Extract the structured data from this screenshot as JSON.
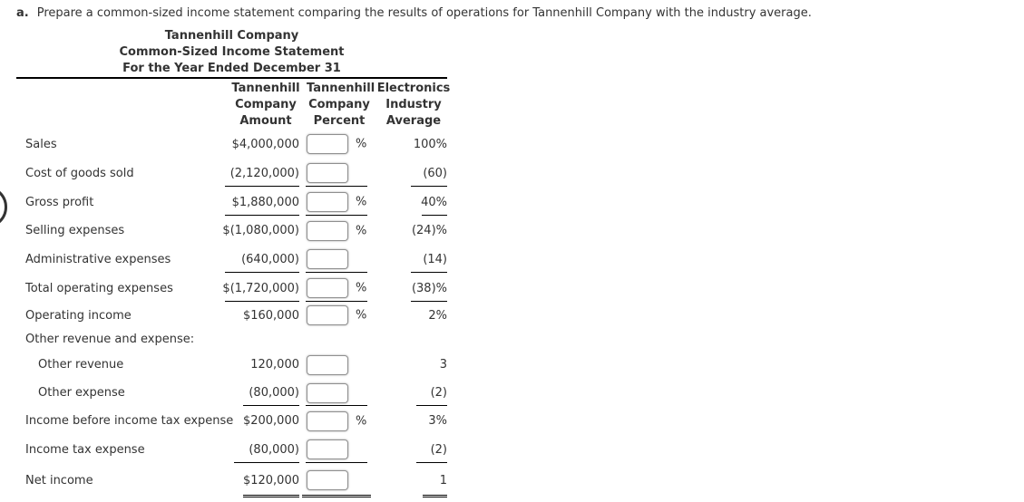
{
  "instruction": {
    "prefix": "a.",
    "text": "Prepare a common-sized income statement comparing the results of operations for Tannenhill Company with the industry average."
  },
  "statement": {
    "title_lines": [
      "Tannenhill Company",
      "Common-Sized Income Statement",
      "For the Year Ended December 31"
    ],
    "columns": [
      {
        "label_lines": [
          "Tannenhill",
          "Company",
          "Amount"
        ]
      },
      {
        "label_lines": [
          "Tannenhill",
          "Company",
          "Percent"
        ]
      },
      {
        "label_lines": [
          "Electronics",
          "Industry",
          "Average"
        ]
      }
    ],
    "rows": [
      {
        "label": "Sales",
        "indent": 0,
        "amount": "$4,000,000",
        "has_input": true,
        "input_value": "",
        "percent_suffix": "%",
        "industry": "100%",
        "underline": "none"
      },
      {
        "label": "Cost of goods sold",
        "indent": 0,
        "amount": "(2,120,000)",
        "has_input": true,
        "input_value": "",
        "percent_suffix": "",
        "industry": "(60)",
        "underline": "single"
      },
      {
        "label": "Gross profit",
        "indent": 0,
        "amount": "$1,880,000",
        "has_input": true,
        "input_value": "",
        "percent_suffix": "%",
        "industry": "40%",
        "underline": "single"
      },
      {
        "label": "Selling expenses",
        "indent": 0,
        "amount": "$(1,080,000)",
        "has_input": true,
        "input_value": "",
        "percent_suffix": "%",
        "industry": "(24)%",
        "underline": "none"
      },
      {
        "label": "Administrative expenses",
        "indent": 0,
        "amount": "(640,000)",
        "has_input": true,
        "input_value": "",
        "percent_suffix": "",
        "industry": "(14)",
        "underline": "single"
      },
      {
        "label": "Total operating expenses",
        "indent": 0,
        "amount": "$(1,720,000)",
        "has_input": true,
        "input_value": "",
        "percent_suffix": "%",
        "industry": "(38)%",
        "underline": "single"
      },
      {
        "label": "Operating income",
        "indent": 0,
        "amount": "$160,000",
        "has_input": true,
        "input_value": "",
        "percent_suffix": "%",
        "industry": "2%",
        "underline": "none"
      },
      {
        "label": "Other revenue and expense:",
        "section_header": true
      },
      {
        "label": "Other revenue",
        "indent": 1,
        "amount": "120,000",
        "has_input": true,
        "input_value": "",
        "percent_suffix": "",
        "industry": "3",
        "underline": "none"
      },
      {
        "label": "Other expense",
        "indent": 1,
        "amount": "(80,000)",
        "has_input": true,
        "input_value": "",
        "percent_suffix": "",
        "industry": "(2)",
        "underline": "single"
      },
      {
        "label": "Income before income tax expense",
        "indent": 0,
        "amount": "$200,000",
        "has_input": true,
        "input_value": "",
        "percent_suffix": "%",
        "industry": "3%",
        "underline": "none"
      },
      {
        "label": "Income tax expense",
        "indent": 0,
        "amount": "(80,000)",
        "has_input": true,
        "input_value": "",
        "percent_suffix": "",
        "industry": "(2)",
        "underline": "single"
      },
      {
        "label": "Net income",
        "indent": 0,
        "amount": "$120,000",
        "has_input": true,
        "input_value": "",
        "percent_suffix": "",
        "industry": "1",
        "underline": "double"
      }
    ]
  },
  "colors": {
    "text": "#333333",
    "rule_line": "#000000",
    "input_border": "#8f8f8f",
    "background": "#ffffff"
  },
  "decoration": {
    "left_edge_partial_circle": true
  }
}
